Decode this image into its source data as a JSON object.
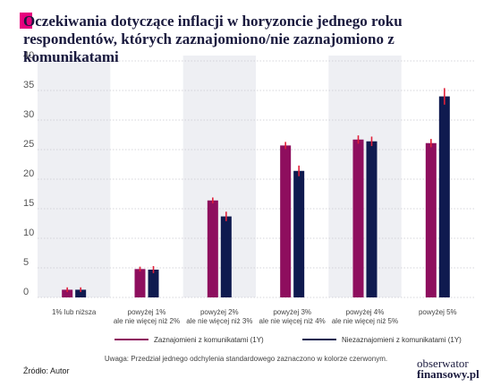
{
  "title": "Oczekiwania dotyczące inflacji w horyzoncie jednego roku respondentów, których zaznajomiono/nie zaznajomiono z komunikatami",
  "note": "Uwaga: Przedział jednego odchylenia standardowego zaznaczono w kolorze czerwonym.",
  "source": "Źródło: Autor",
  "logo": {
    "line1": "obserwator",
    "line2": "finansowy.pl"
  },
  "colors": {
    "series1": "#8e0e5e",
    "series2": "#0f1a4f",
    "error": "#e0203a",
    "band": "#eeeff3"
  },
  "chart_data": {
    "type": "bar",
    "ylim": [
      0,
      40
    ],
    "yticks": [
      0,
      5,
      10,
      15,
      20,
      25,
      30,
      35,
      40
    ],
    "ytick_labels": [
      "0",
      "5",
      "10",
      "15",
      "20",
      "25",
      "30",
      "35",
      "40"
    ],
    "categories": [
      [
        "1% lub niższa"
      ],
      [
        "powyżej 1%",
        "ale nie więcej niż 2%"
      ],
      [
        "powyżej 2%",
        "ale nie więcej niż 3%"
      ],
      [
        "powyżej 3%",
        "ale nie więcej niż 4%"
      ],
      [
        "powyżej 4%",
        "ale nie więcej niż 5%"
      ],
      [
        "powyżej 5%"
      ]
    ],
    "series": [
      {
        "name": "Zaznajomieni z komunikatami (1Y)",
        "values": [
          1.3,
          4.8,
          16.4,
          25.7,
          26.7,
          26.1
        ],
        "err": [
          0.4,
          0.4,
          0.5,
          0.6,
          0.7,
          0.7
        ]
      },
      {
        "name": "Niezaznajomieni z komunikatami (1Y)",
        "values": [
          1.3,
          4.7,
          13.7,
          21.4,
          26.4,
          34.0
        ],
        "err": [
          0.4,
          0.6,
          0.8,
          0.9,
          0.8,
          1.4
        ]
      }
    ],
    "legend_position": "bottom"
  }
}
